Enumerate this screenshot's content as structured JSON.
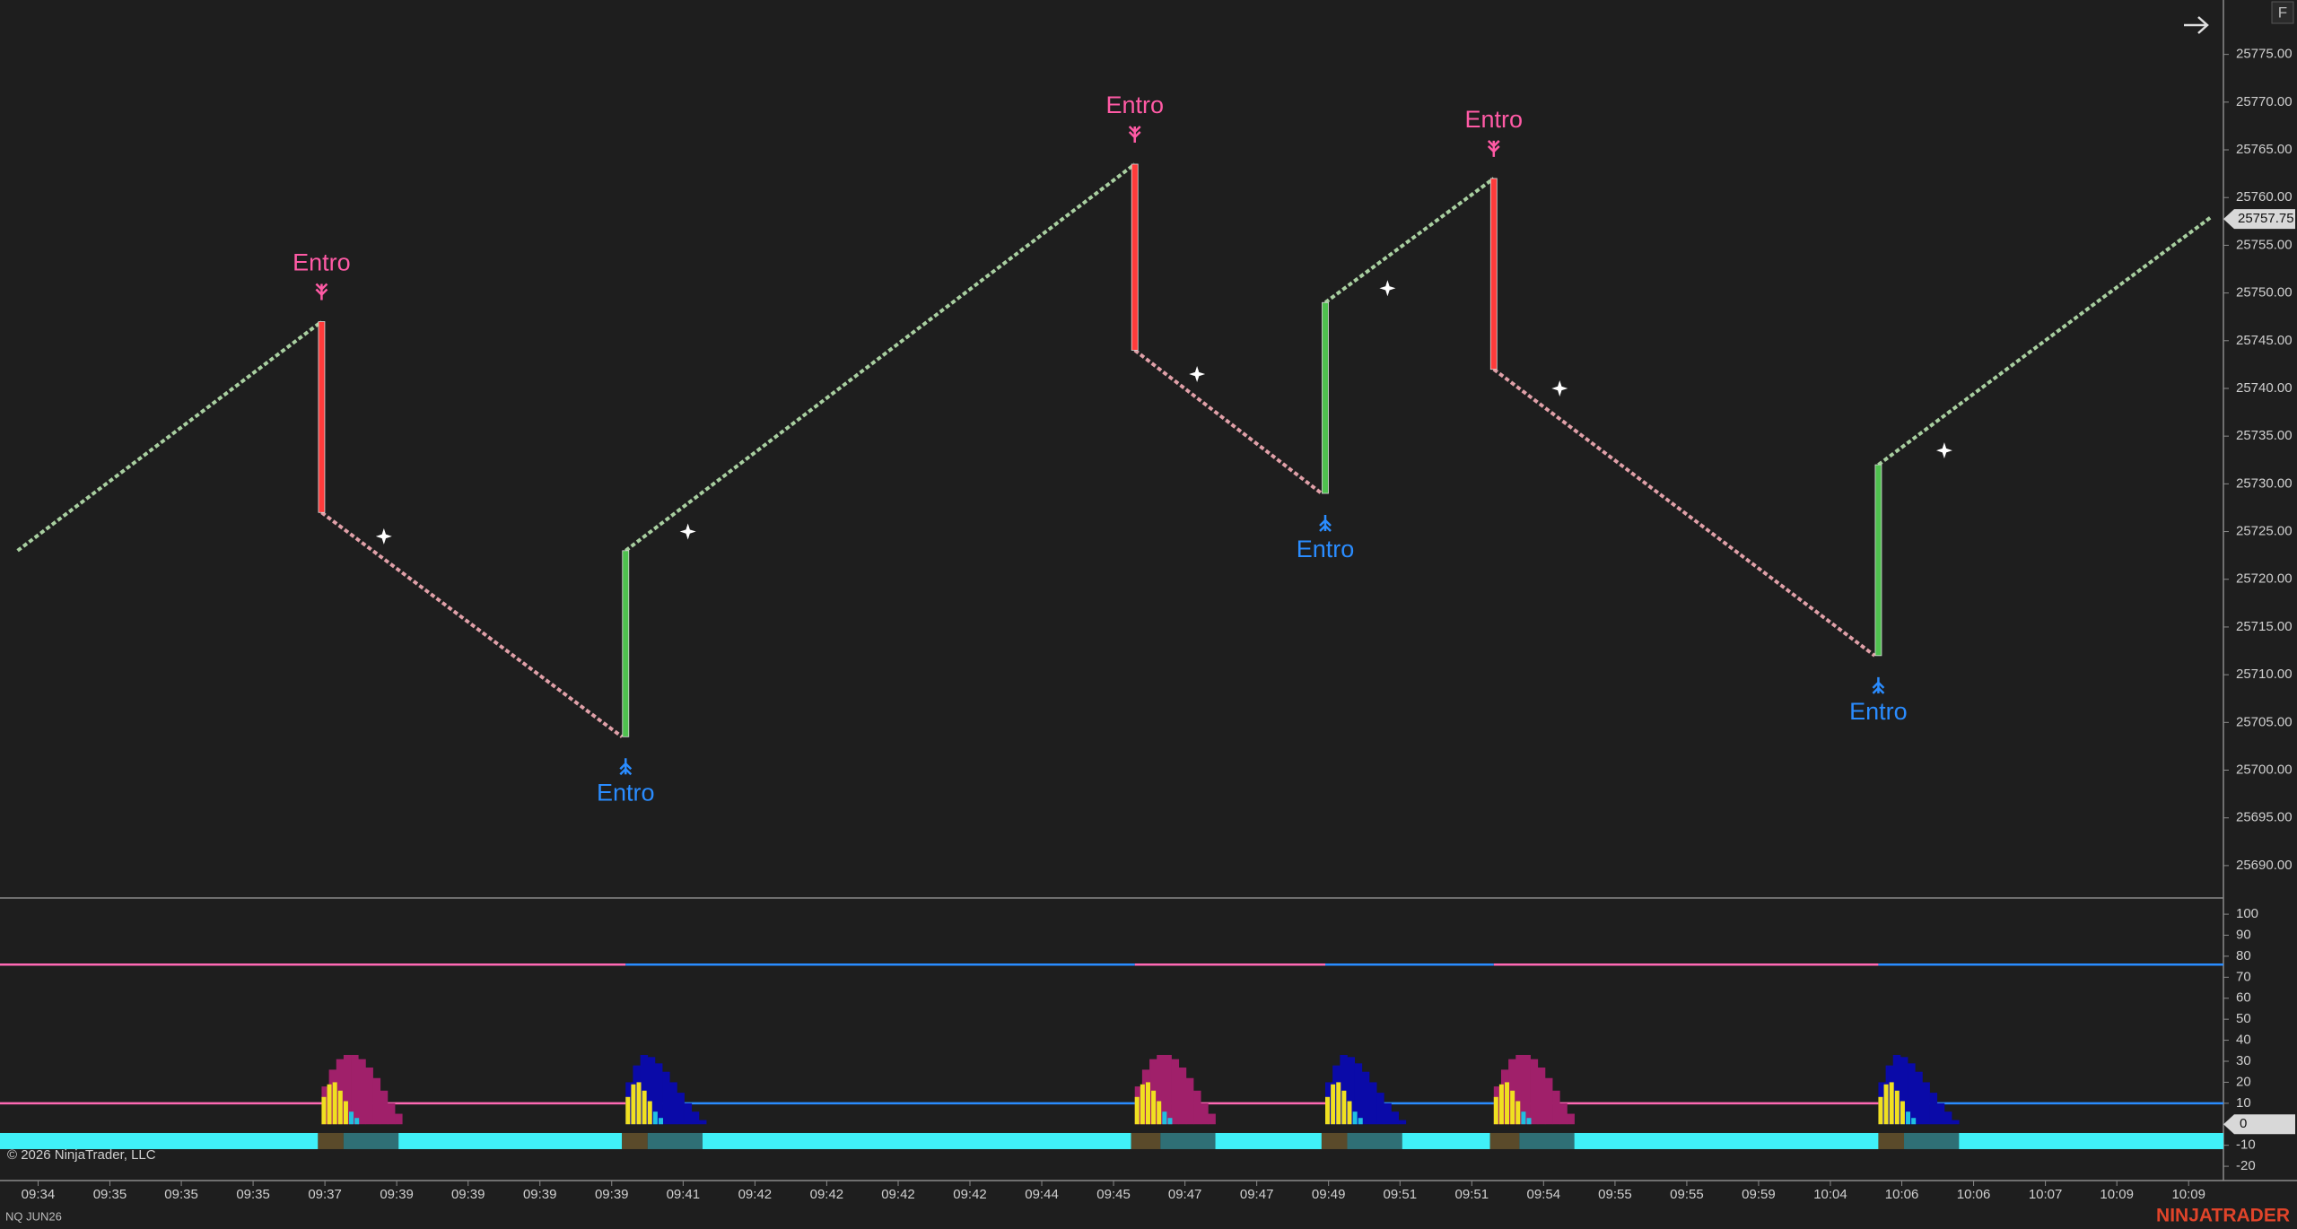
{
  "chart_data": [
    {
      "type": "price",
      "xlim": [
        -4.8,
        602.2
      ],
      "xticks": [
        {
          "value": 5.6,
          "label": "09:34"
        },
        {
          "value": 25.2,
          "label": "09:35"
        },
        {
          "value": 44.7,
          "label": "09:35"
        },
        {
          "value": 64.3,
          "label": "09:35"
        },
        {
          "value": 83.9,
          "label": "09:37"
        },
        {
          "value": 103.5,
          "label": "09:39"
        },
        {
          "value": 123.0,
          "label": "09:39"
        },
        {
          "value": 142.6,
          "label": "09:39"
        },
        {
          "value": 162.2,
          "label": "09:39"
        },
        {
          "value": 181.7,
          "label": "09:41"
        },
        {
          "value": 201.3,
          "label": "09:42"
        },
        {
          "value": 220.9,
          "label": "09:42"
        },
        {
          "value": 240.4,
          "label": "09:42"
        },
        {
          "value": 260.0,
          "label": "09:42"
        },
        {
          "value": 279.6,
          "label": "09:44"
        },
        {
          "value": 299.2,
          "label": "09:45"
        },
        {
          "value": 318.7,
          "label": "09:47"
        },
        {
          "value": 338.3,
          "label": "09:47"
        },
        {
          "value": 357.9,
          "label": "09:49"
        },
        {
          "value": 377.4,
          "label": "09:51"
        },
        {
          "value": 397.0,
          "label": "09:51"
        },
        {
          "value": 416.6,
          "label": "09:54"
        },
        {
          "value": 436.1,
          "label": "09:55"
        },
        {
          "value": 455.7,
          "label": "09:55"
        },
        {
          "value": 475.3,
          "label": "09:59"
        },
        {
          "value": 494.9,
          "label": "10:04"
        },
        {
          "value": 514.4,
          "label": "10:06"
        },
        {
          "value": 534.0,
          "label": "10:06"
        },
        {
          "value": 553.6,
          "label": "10:07"
        },
        {
          "value": 573.1,
          "label": "10:09"
        },
        {
          "value": 592.7,
          "label": "10:09"
        }
      ],
      "ylim": [
        25686.7,
        25780.7
      ],
      "yticks": [
        {
          "value": 25690,
          "label": "25690.00"
        },
        {
          "value": 25695,
          "label": "25695.00"
        },
        {
          "value": 25700,
          "label": "25700.00"
        },
        {
          "value": 25705,
          "label": "25705.00"
        },
        {
          "value": 25710,
          "label": "25710.00"
        },
        {
          "value": 25715,
          "label": "25715.00"
        },
        {
          "value": 25720,
          "label": "25720.00"
        },
        {
          "value": 25725,
          "label": "25725.00"
        },
        {
          "value": 25730,
          "label": "25730.00"
        },
        {
          "value": 25735,
          "label": "25735.00"
        },
        {
          "value": 25740,
          "label": "25740.00"
        },
        {
          "value": 25745,
          "label": "25745.00"
        },
        {
          "value": 25750,
          "label": "25750.00"
        },
        {
          "value": 25755,
          "label": "25755.00"
        },
        {
          "value": 25760,
          "label": "25760.00"
        },
        {
          "value": 25765,
          "label": "25765.00"
        },
        {
          "value": 25770,
          "label": "25770.00"
        },
        {
          "value": 25775,
          "label": "25775.00"
        }
      ],
      "last_price": 25757.75,
      "series": [
        {
          "color": "#a8cfa0",
          "x": [
            0,
            83,
            null,
            166,
            305,
            null,
            357,
            403,
            null,
            508,
            599
          ],
          "y": [
            25723,
            25747,
            null,
            25723,
            25763.5,
            null,
            25749,
            25762,
            null,
            25732,
            25758
          ]
        },
        {
          "color": "#e0a0a8",
          "x": [
            83,
            165,
            null,
            305,
            356,
            null,
            403,
            507
          ],
          "y": [
            25727,
            25703.5,
            null,
            25744,
            25729,
            null,
            25742,
            25712
          ]
        }
      ],
      "reversal_bars": [
        {
          "x": 83,
          "open": 25747,
          "close": 25727,
          "color": "#ff3b3b"
        },
        {
          "x": 166,
          "open": 25703.5,
          "close": 25723,
          "color": "#4fc14f"
        },
        {
          "x": 305,
          "open": 25763.5,
          "close": 25744,
          "color": "#ff3b3b"
        },
        {
          "x": 357,
          "open": 25729,
          "close": 25749,
          "color": "#4fc14f"
        },
        {
          "x": 403,
          "open": 25762,
          "close": 25742,
          "color": "#ff3b3b"
        },
        {
          "x": 508,
          "open": 25712,
          "close": 25732,
          "color": "#4fc14f"
        }
      ],
      "signals": [
        {
          "label": "Entro",
          "direction": "short",
          "x": 83,
          "price": 25747,
          "color": "#ff5aa5"
        },
        {
          "label": "Entro",
          "direction": "long",
          "x": 166,
          "price": 25703.5,
          "color": "#2a8cff"
        },
        {
          "label": "Entro",
          "direction": "short",
          "x": 305,
          "price": 25763.5,
          "color": "#ff5aa5"
        },
        {
          "label": "Entro",
          "direction": "long",
          "x": 357,
          "price": 25729,
          "color": "#2a8cff"
        },
        {
          "label": "Entro",
          "direction": "short",
          "x": 403,
          "price": 25762,
          "color": "#ff5aa5"
        },
        {
          "label": "Entro",
          "direction": "long",
          "x": 508,
          "price": 25712,
          "color": "#2a8cff"
        }
      ],
      "markers": {
        "color": "#ffffff",
        "x": [
          100,
          183,
          322,
          374,
          421,
          526
        ],
        "y": [
          25724.5,
          25725,
          25741.5,
          25750.5,
          25740,
          25733.5
        ]
      }
    },
    {
      "type": "oscillator",
      "xlim": [
        -4.8,
        602.2
      ],
      "ylim": [
        -26.8,
        107.3
      ],
      "yticks": [
        100,
        90,
        80,
        70,
        60,
        50,
        40,
        30,
        20,
        10,
        -10,
        -20
      ],
      "last_value": 0,
      "levels": [
        76,
        10
      ],
      "regimes": [
        {
          "start": -4.8,
          "end": 166,
          "color": "#ff69b4"
        },
        {
          "start": 166,
          "end": 305,
          "color": "#2a8cff"
        },
        {
          "start": 305,
          "end": 357,
          "color": "#ff69b4"
        },
        {
          "start": 357,
          "end": 403,
          "color": "#2a8cff"
        },
        {
          "start": 403,
          "end": 508,
          "color": "#ff69b4"
        },
        {
          "start": 508,
          "end": 602.2,
          "color": "#2a8cff"
        }
      ],
      "band": {
        "value": -8,
        "segments": [
          {
            "start": -4.8,
            "end": 82,
            "color": "#40f0f8"
          },
          {
            "start": 82,
            "end": 89,
            "color": "#5a4a2a"
          },
          {
            "start": 89,
            "end": 104,
            "color": "#2f6f75"
          },
          {
            "start": 104,
            "end": 165,
            "color": "#40f0f8"
          },
          {
            "start": 165,
            "end": 172,
            "color": "#5a4a2a"
          },
          {
            "start": 172,
            "end": 187,
            "color": "#2f6f75"
          },
          {
            "start": 187,
            "end": 304,
            "color": "#40f0f8"
          },
          {
            "start": 304,
            "end": 312,
            "color": "#5a4a2a"
          },
          {
            "start": 312,
            "end": 327,
            "color": "#2f6f75"
          },
          {
            "start": 327,
            "end": 356,
            "color": "#40f0f8"
          },
          {
            "start": 356,
            "end": 363,
            "color": "#5a4a2a"
          },
          {
            "start": 363,
            "end": 378,
            "color": "#2f6f75"
          },
          {
            "start": 378,
            "end": 402,
            "color": "#40f0f8"
          },
          {
            "start": 402,
            "end": 410,
            "color": "#5a4a2a"
          },
          {
            "start": 410,
            "end": 425,
            "color": "#2f6f75"
          },
          {
            "start": 425,
            "end": 508,
            "color": "#40f0f8"
          },
          {
            "start": 508,
            "end": 515,
            "color": "#5a4a2a"
          },
          {
            "start": 515,
            "end": 530,
            "color": "#2f6f75"
          },
          {
            "start": 530,
            "end": 602.2,
            "color": "#40f0f8"
          }
        ]
      },
      "histograms": [
        {
          "color": "#a0206a",
          "x": [
            83,
            85,
            87,
            89,
            91,
            93,
            95,
            97,
            99,
            101,
            103
          ],
          "values": [
            18,
            26,
            31,
            33,
            33,
            31,
            27,
            22,
            16,
            10,
            5
          ]
        },
        {
          "color": "#f0e020",
          "x": [
            83,
            84.5,
            86,
            87.5,
            89
          ],
          "values": [
            13,
            19,
            20,
            16,
            11
          ]
        },
        {
          "color": "#20c0e0",
          "x": [
            90.5,
            92
          ],
          "values": [
            6,
            3
          ]
        },
        {
          "color": "#0a0aa8",
          "x": [
            166,
            168,
            170,
            172,
            174,
            176,
            178,
            180,
            182,
            184,
            186
          ],
          "values": [
            20,
            28,
            33,
            32,
            29,
            25,
            20,
            15,
            10,
            6,
            2
          ]
        },
        {
          "color": "#f0e020",
          "x": [
            166,
            167.5,
            169,
            170.5,
            172
          ],
          "values": [
            13,
            19,
            20,
            16,
            11
          ]
        },
        {
          "color": "#20c0e0",
          "x": [
            173.5,
            175
          ],
          "values": [
            6,
            3
          ]
        },
        {
          "color": "#a0206a",
          "x": [
            305,
            307,
            309,
            311,
            313,
            315,
            317,
            319,
            321,
            323,
            325
          ],
          "values": [
            18,
            26,
            31,
            33,
            33,
            31,
            27,
            22,
            16,
            10,
            5
          ]
        },
        {
          "color": "#f0e020",
          "x": [
            305,
            306.5,
            308,
            309.5,
            311
          ],
          "values": [
            13,
            19,
            20,
            16,
            11
          ]
        },
        {
          "color": "#20c0e0",
          "x": [
            312.5,
            314
          ],
          "values": [
            6,
            3
          ]
        },
        {
          "color": "#0a0aa8",
          "x": [
            357,
            359,
            361,
            363,
            365,
            367,
            369,
            371,
            373,
            375,
            377
          ],
          "values": [
            20,
            28,
            33,
            32,
            29,
            25,
            20,
            15,
            10,
            6,
            2
          ]
        },
        {
          "color": "#f0e020",
          "x": [
            357,
            358.5,
            360,
            361.5,
            363
          ],
          "values": [
            13,
            19,
            20,
            16,
            11
          ]
        },
        {
          "color": "#20c0e0",
          "x": [
            364.5,
            366
          ],
          "values": [
            6,
            3
          ]
        },
        {
          "color": "#a0206a",
          "x": [
            403,
            405,
            407,
            409,
            411,
            413,
            415,
            417,
            419,
            421,
            423
          ],
          "values": [
            18,
            26,
            31,
            33,
            33,
            31,
            27,
            22,
            16,
            10,
            5
          ]
        },
        {
          "color": "#f0e020",
          "x": [
            403,
            404.5,
            406,
            407.5,
            409
          ],
          "values": [
            13,
            19,
            20,
            16,
            11
          ]
        },
        {
          "color": "#20c0e0",
          "x": [
            410.5,
            412
          ],
          "values": [
            6,
            3
          ]
        },
        {
          "color": "#0a0aa8",
          "x": [
            508,
            510,
            512,
            514,
            516,
            518,
            520,
            522,
            524,
            526,
            528
          ],
          "values": [
            20,
            28,
            33,
            32,
            29,
            25,
            20,
            15,
            10,
            6,
            2
          ]
        },
        {
          "color": "#f0e020",
          "x": [
            508,
            509.5,
            511,
            512.5,
            514
          ],
          "values": [
            13,
            19,
            20,
            16,
            11
          ]
        },
        {
          "color": "#20c0e0",
          "x": [
            515.5,
            517
          ],
          "values": [
            6,
            3
          ]
        }
      ]
    }
  ],
  "copyright": "© 2026 NinjaTrader, LLC",
  "instrument": "NQ JUN26",
  "brand": "NINJATRADER",
  "button": "F"
}
